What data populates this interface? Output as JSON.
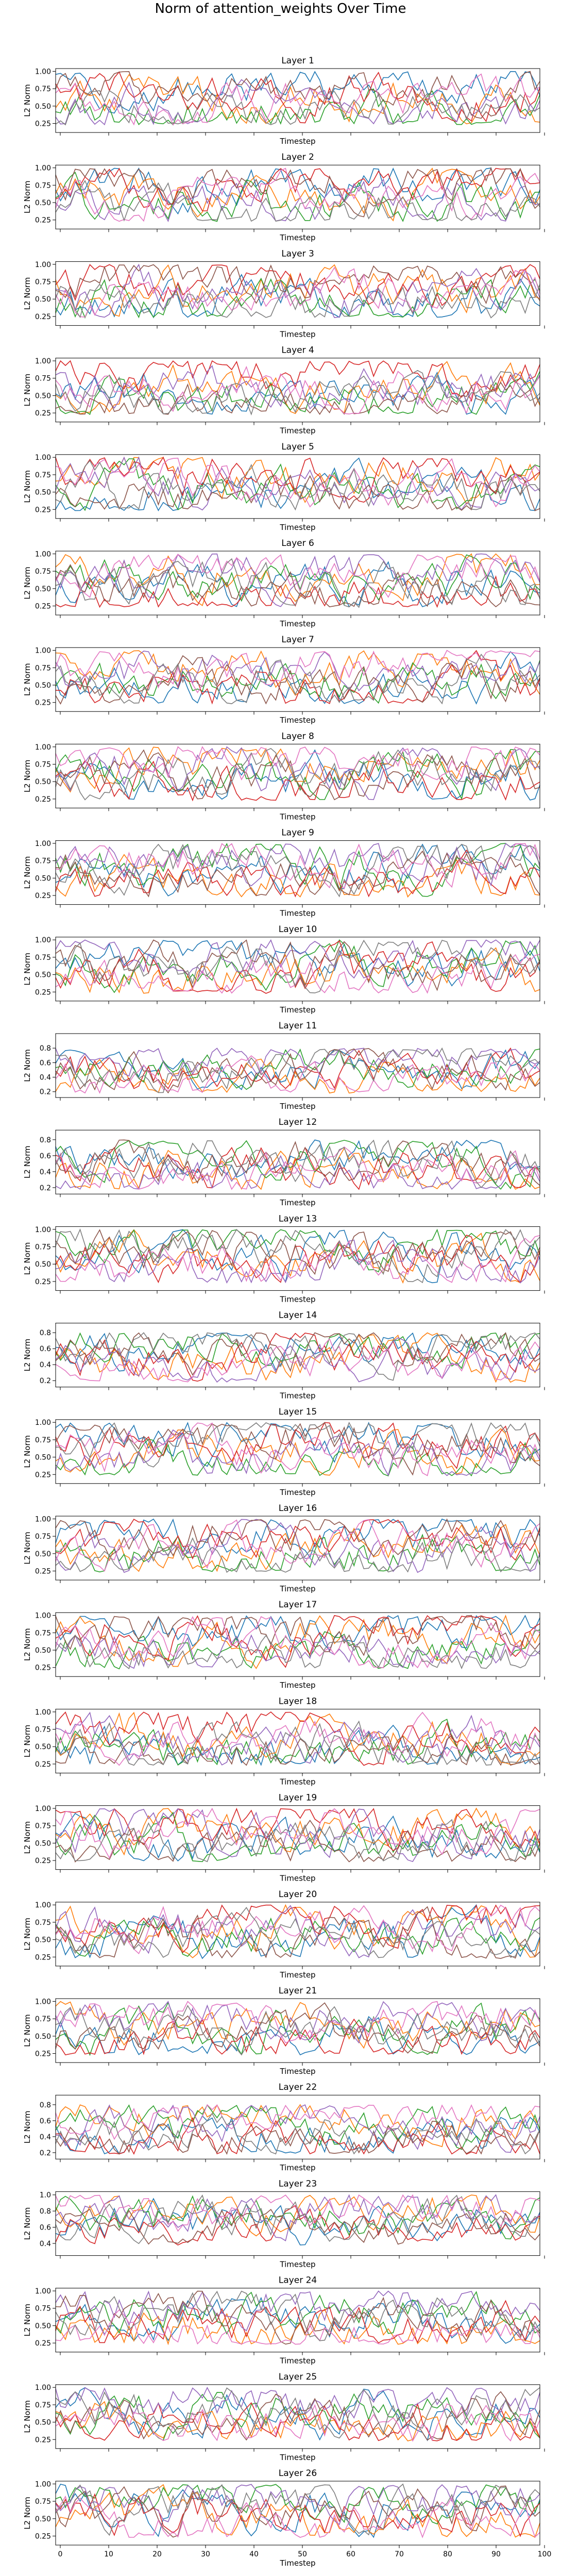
{
  "figure": {
    "title": "Norm of attention_weights Over Time",
    "series_colors": [
      "#1f77b4",
      "#ff7f0e",
      "#2ca02c",
      "#d62728",
      "#9467bd",
      "#8c564b",
      "#e377c2",
      "#7f7f7f"
    ]
  },
  "chart_data": [
    {
      "type": "line",
      "title": "Layer 1",
      "xlabel": "Timestep",
      "ylabel": "L2 Norm",
      "xlim": [
        0,
        99
      ],
      "ylim": [
        0.12,
        1.04
      ],
      "yticks": [
        0.25,
        0.5,
        0.75,
        1.0
      ],
      "ytick_labels": [
        "0.25",
        "0.50",
        "0.75",
        "1.00"
      ],
      "x_tick_labels_visible": false,
      "grid": false,
      "legend": "none",
      "num_series": 8
    },
    {
      "type": "line",
      "title": "Layer 2",
      "xlabel": "Timestep",
      "ylabel": "L2 Norm",
      "xlim": [
        0,
        99
      ],
      "ylim": [
        0.12,
        1.04
      ],
      "yticks": [
        0.25,
        0.5,
        0.75,
        1.0
      ],
      "ytick_labels": [
        "0.25",
        "0.50",
        "0.75",
        "1.00"
      ],
      "x_tick_labels_visible": false,
      "grid": false,
      "legend": "none",
      "num_series": 8
    },
    {
      "type": "line",
      "title": "Layer 3",
      "xlabel": "Timestep",
      "ylabel": "L2 Norm",
      "xlim": [
        0,
        99
      ],
      "ylim": [
        0.12,
        1.04
      ],
      "yticks": [
        0.25,
        0.5,
        0.75,
        1.0
      ],
      "ytick_labels": [
        "0.25",
        "0.50",
        "0.75",
        "1.00"
      ],
      "x_tick_labels_visible": false,
      "grid": false,
      "legend": "none",
      "num_series": 8
    },
    {
      "type": "line",
      "title": "Layer 4",
      "xlabel": "Timestep",
      "ylabel": "L2 Norm",
      "xlim": [
        0,
        99
      ],
      "ylim": [
        0.12,
        1.04
      ],
      "yticks": [
        0.25,
        0.5,
        0.75,
        1.0
      ],
      "ytick_labels": [
        "0.25",
        "0.50",
        "0.75",
        "1.00"
      ],
      "x_tick_labels_visible": false,
      "grid": false,
      "legend": "none",
      "num_series": 8
    },
    {
      "type": "line",
      "title": "Layer 5",
      "xlabel": "Timestep",
      "ylabel": "L2 Norm",
      "xlim": [
        0,
        99
      ],
      "ylim": [
        0.12,
        1.04
      ],
      "yticks": [
        0.25,
        0.5,
        0.75,
        1.0
      ],
      "ytick_labels": [
        "0.25",
        "0.50",
        "0.75",
        "1.00"
      ],
      "x_tick_labels_visible": false,
      "grid": false,
      "legend": "none",
      "num_series": 8
    },
    {
      "type": "line",
      "title": "Layer 6",
      "xlabel": "Timestep",
      "ylabel": "L2 Norm",
      "xlim": [
        0,
        99
      ],
      "ylim": [
        0.12,
        1.04
      ],
      "yticks": [
        0.25,
        0.5,
        0.75,
        1.0
      ],
      "ytick_labels": [
        "0.25",
        "0.50",
        "0.75",
        "1.00"
      ],
      "x_tick_labels_visible": false,
      "grid": false,
      "legend": "none",
      "num_series": 8
    },
    {
      "type": "line",
      "title": "Layer 7",
      "xlabel": "Timestep",
      "ylabel": "L2 Norm",
      "xlim": [
        0,
        99
      ],
      "ylim": [
        0.12,
        1.04
      ],
      "yticks": [
        0.25,
        0.5,
        0.75,
        1.0
      ],
      "ytick_labels": [
        "0.25",
        "0.50",
        "0.75",
        "1.00"
      ],
      "x_tick_labels_visible": false,
      "grid": false,
      "legend": "none",
      "num_series": 8
    },
    {
      "type": "line",
      "title": "Layer 8",
      "xlabel": "Timestep",
      "ylabel": "L2 Norm",
      "xlim": [
        0,
        99
      ],
      "ylim": [
        0.12,
        1.04
      ],
      "yticks": [
        0.25,
        0.5,
        0.75,
        1.0
      ],
      "ytick_labels": [
        "0.25",
        "0.50",
        "0.75",
        "1.00"
      ],
      "x_tick_labels_visible": false,
      "grid": false,
      "legend": "none",
      "num_series": 8
    },
    {
      "type": "line",
      "title": "Layer 9",
      "xlabel": "Timestep",
      "ylabel": "L2 Norm",
      "xlim": [
        0,
        99
      ],
      "ylim": [
        0.12,
        1.04
      ],
      "yticks": [
        0.25,
        0.5,
        0.75,
        1.0
      ],
      "ytick_labels": [
        "0.25",
        "0.50",
        "0.75",
        "1.00"
      ],
      "x_tick_labels_visible": false,
      "grid": false,
      "legend": "none",
      "num_series": 8
    },
    {
      "type": "line",
      "title": "Layer 10",
      "xlabel": "Timestep",
      "ylabel": "L2 Norm",
      "xlim": [
        0,
        99
      ],
      "ylim": [
        0.12,
        1.04
      ],
      "yticks": [
        0.25,
        0.5,
        0.75,
        1.0
      ],
      "ytick_labels": [
        "0.25",
        "0.50",
        "0.75",
        "1.00"
      ],
      "x_tick_labels_visible": false,
      "grid": false,
      "legend": "none",
      "num_series": 8
    },
    {
      "type": "line",
      "title": "Layer 11",
      "xlabel": "Timestep",
      "ylabel": "L2 Norm",
      "xlim": [
        0,
        99
      ],
      "ylim": [
        0.12,
        1.0
      ],
      "yticks": [
        0.2,
        0.4,
        0.6,
        0.8
      ],
      "ytick_labels": [
        "0.2",
        "0.4",
        "0.6",
        "0.8"
      ],
      "x_tick_labels_visible": false,
      "grid": false,
      "legend": "none",
      "num_series": 8
    },
    {
      "type": "line",
      "title": "Layer 12",
      "xlabel": "Timestep",
      "ylabel": "L2 Norm",
      "xlim": [
        0,
        99
      ],
      "ylim": [
        0.12,
        0.92
      ],
      "yticks": [
        0.2,
        0.4,
        0.6,
        0.8
      ],
      "ytick_labels": [
        "0.2",
        "0.4",
        "0.6",
        "0.8"
      ],
      "x_tick_labels_visible": false,
      "grid": false,
      "legend": "none",
      "num_series": 8
    },
    {
      "type": "line",
      "title": "Layer 13",
      "xlabel": "Timestep",
      "ylabel": "L2 Norm",
      "xlim": [
        0,
        99
      ],
      "ylim": [
        0.12,
        1.04
      ],
      "yticks": [
        0.25,
        0.5,
        0.75,
        1.0
      ],
      "ytick_labels": [
        "0.25",
        "0.50",
        "0.75",
        "1.00"
      ],
      "x_tick_labels_visible": false,
      "grid": false,
      "legend": "none",
      "num_series": 8
    },
    {
      "type": "line",
      "title": "Layer 14",
      "xlabel": "Timestep",
      "ylabel": "L2 Norm",
      "xlim": [
        0,
        99
      ],
      "ylim": [
        0.12,
        0.92
      ],
      "yticks": [
        0.2,
        0.4,
        0.6,
        0.8
      ],
      "ytick_labels": [
        "0.2",
        "0.4",
        "0.6",
        "0.8"
      ],
      "x_tick_labels_visible": false,
      "grid": false,
      "legend": "none",
      "num_series": 8
    },
    {
      "type": "line",
      "title": "Layer 15",
      "xlabel": "Timestep",
      "ylabel": "L2 Norm",
      "xlim": [
        0,
        99
      ],
      "ylim": [
        0.12,
        1.04
      ],
      "yticks": [
        0.25,
        0.5,
        0.75,
        1.0
      ],
      "ytick_labels": [
        "0.25",
        "0.50",
        "0.75",
        "1.00"
      ],
      "x_tick_labels_visible": false,
      "grid": false,
      "legend": "none",
      "num_series": 8
    },
    {
      "type": "line",
      "title": "Layer 16",
      "xlabel": "Timestep",
      "ylabel": "L2 Norm",
      "xlim": [
        0,
        99
      ],
      "ylim": [
        0.12,
        1.04
      ],
      "yticks": [
        0.25,
        0.5,
        0.75,
        1.0
      ],
      "ytick_labels": [
        "0.25",
        "0.50",
        "0.75",
        "1.00"
      ],
      "x_tick_labels_visible": false,
      "grid": false,
      "legend": "none",
      "num_series": 8
    },
    {
      "type": "line",
      "title": "Layer 17",
      "xlabel": "Timestep",
      "ylabel": "L2 Norm",
      "xlim": [
        0,
        99
      ],
      "ylim": [
        0.12,
        1.04
      ],
      "yticks": [
        0.25,
        0.5,
        0.75,
        1.0
      ],
      "ytick_labels": [
        "0.25",
        "0.50",
        "0.75",
        "1.00"
      ],
      "x_tick_labels_visible": false,
      "grid": false,
      "legend": "none",
      "num_series": 8
    },
    {
      "type": "line",
      "title": "Layer 18",
      "xlabel": "Timestep",
      "ylabel": "L2 Norm",
      "xlim": [
        0,
        99
      ],
      "ylim": [
        0.12,
        1.04
      ],
      "yticks": [
        0.25,
        0.5,
        0.75,
        1.0
      ],
      "ytick_labels": [
        "0.25",
        "0.50",
        "0.75",
        "1.00"
      ],
      "x_tick_labels_visible": false,
      "grid": false,
      "legend": "none",
      "num_series": 8
    },
    {
      "type": "line",
      "title": "Layer 19",
      "xlabel": "Timestep",
      "ylabel": "L2 Norm",
      "xlim": [
        0,
        99
      ],
      "ylim": [
        0.12,
        1.04
      ],
      "yticks": [
        0.25,
        0.5,
        0.75,
        1.0
      ],
      "ytick_labels": [
        "0.25",
        "0.50",
        "0.75",
        "1.00"
      ],
      "x_tick_labels_visible": false,
      "grid": false,
      "legend": "none",
      "num_series": 8
    },
    {
      "type": "line",
      "title": "Layer 20",
      "xlabel": "Timestep",
      "ylabel": "L2 Norm",
      "xlim": [
        0,
        99
      ],
      "ylim": [
        0.12,
        1.04
      ],
      "yticks": [
        0.25,
        0.5,
        0.75,
        1.0
      ],
      "ytick_labels": [
        "0.25",
        "0.50",
        "0.75",
        "1.00"
      ],
      "x_tick_labels_visible": false,
      "grid": false,
      "legend": "none",
      "num_series": 8
    },
    {
      "type": "line",
      "title": "Layer 21",
      "xlabel": "Timestep",
      "ylabel": "L2 Norm",
      "xlim": [
        0,
        99
      ],
      "ylim": [
        0.12,
        1.04
      ],
      "yticks": [
        0.25,
        0.5,
        0.75,
        1.0
      ],
      "ytick_labels": [
        "0.25",
        "0.50",
        "0.75",
        "1.00"
      ],
      "x_tick_labels_visible": false,
      "grid": false,
      "legend": "none",
      "num_series": 8
    },
    {
      "type": "line",
      "title": "Layer 22",
      "xlabel": "Timestep",
      "ylabel": "L2 Norm",
      "xlim": [
        0,
        99
      ],
      "ylim": [
        0.12,
        0.92
      ],
      "yticks": [
        0.2,
        0.4,
        0.6,
        0.8
      ],
      "ytick_labels": [
        "0.2",
        "0.4",
        "0.6",
        "0.8"
      ],
      "x_tick_labels_visible": false,
      "grid": false,
      "legend": "none",
      "num_series": 8
    },
    {
      "type": "line",
      "title": "Layer 23",
      "xlabel": "Timestep",
      "ylabel": "L2 Norm",
      "xlim": [
        0,
        99
      ],
      "ylim": [
        0.25,
        1.04
      ],
      "yticks": [
        0.4,
        0.6,
        0.8,
        1.0
      ],
      "ytick_labels": [
        "0.4",
        "0.6",
        "0.8",
        "1.0"
      ],
      "x_tick_labels_visible": false,
      "grid": false,
      "legend": "none",
      "num_series": 8
    },
    {
      "type": "line",
      "title": "Layer 24",
      "xlabel": "Timestep",
      "ylabel": "L2 Norm",
      "xlim": [
        0,
        99
      ],
      "ylim": [
        0.12,
        1.04
      ],
      "yticks": [
        0.25,
        0.5,
        0.75,
        1.0
      ],
      "ytick_labels": [
        "0.25",
        "0.50",
        "0.75",
        "1.00"
      ],
      "x_tick_labels_visible": false,
      "grid": false,
      "legend": "none",
      "num_series": 8
    },
    {
      "type": "line",
      "title": "Layer 25",
      "xlabel": "Timestep",
      "ylabel": "L2 Norm",
      "xlim": [
        0,
        99
      ],
      "ylim": [
        0.12,
        1.04
      ],
      "yticks": [
        0.25,
        0.5,
        0.75,
        1.0
      ],
      "ytick_labels": [
        "0.25",
        "0.50",
        "0.75",
        "1.00"
      ],
      "x_tick_labels_visible": false,
      "grid": false,
      "legend": "none",
      "num_series": 8
    },
    {
      "type": "line",
      "title": "Layer 26",
      "xlabel": "Timestep",
      "ylabel": "L2 Norm",
      "xlim": [
        0,
        99
      ],
      "ylim": [
        0.12,
        1.04
      ],
      "yticks": [
        0.25,
        0.5,
        0.75,
        1.0
      ],
      "ytick_labels": [
        "0.25",
        "0.50",
        "0.75",
        "1.00"
      ],
      "xticks": [
        0,
        10,
        20,
        30,
        40,
        50,
        60,
        70,
        80,
        90,
        100
      ],
      "xtick_labels": [
        "0",
        "10",
        "20",
        "30",
        "40",
        "50",
        "60",
        "70",
        "80",
        "90",
        "100"
      ],
      "x_tick_labels_visible": true,
      "grid": false,
      "legend": "none",
      "num_series": 8
    }
  ]
}
